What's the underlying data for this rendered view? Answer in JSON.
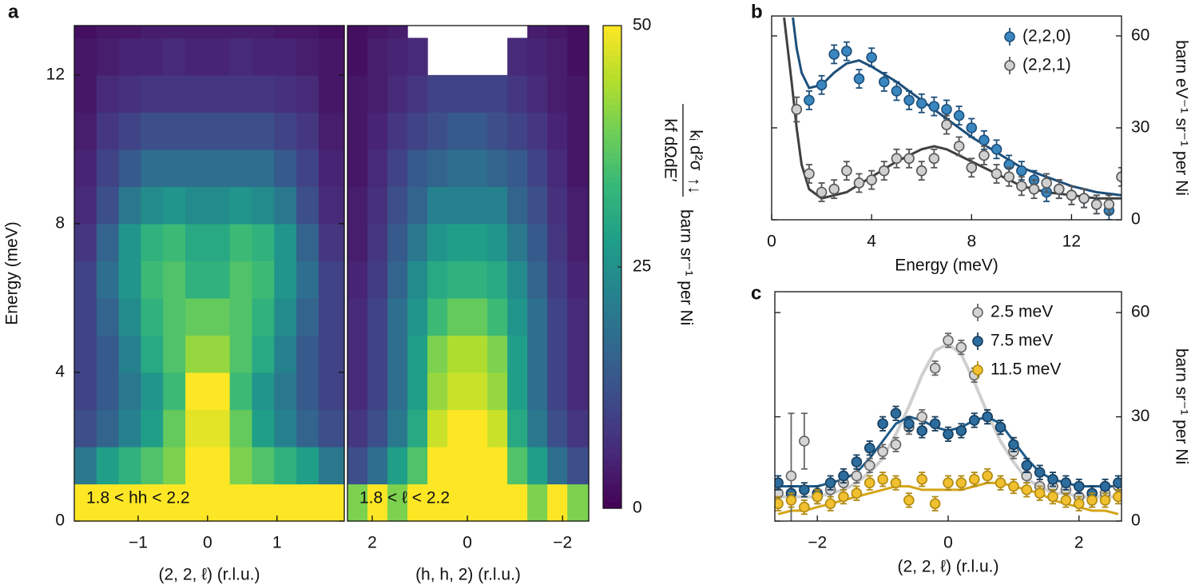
{
  "chart_data": [
    {
      "type": "heatmap",
      "panel": "a",
      "ylabel": "Energy (meV)",
      "xlabel": "(2, 2, ℓ) (r.l.u.)",
      "annotation": "1.8 < hh < 2.2",
      "xlim": [
        -1.92,
        1.97
      ],
      "ylim": [
        0,
        13.33
      ],
      "xticks": [
        {
          "value": -1,
          "label": "−1"
        },
        0,
        1
      ],
      "yticks": [
        0,
        4,
        8,
        12
      ],
      "yaxis_side": "left",
      "x_edges": [
        -1.92,
        -1.6,
        -1.28,
        -0.96,
        -0.64,
        -0.32,
        0,
        0.32,
        0.64,
        0.96,
        1.28,
        1.6,
        1.97
      ],
      "y_edges": [
        0,
        1,
        2,
        3,
        4,
        5,
        6,
        7,
        8,
        9,
        10,
        11,
        12,
        13,
        13.33
      ],
      "z": [
        [
          50,
          50,
          50,
          50,
          50,
          50,
          50,
          50,
          50,
          50,
          50,
          50
        ],
        [
          20,
          28,
          32,
          36,
          40,
          50,
          50,
          40,
          36,
          32,
          28,
          20
        ],
        [
          12,
          16,
          22,
          28,
          38,
          48,
          48,
          38,
          28,
          22,
          16,
          12
        ],
        [
          10,
          14,
          20,
          26,
          34,
          50,
          50,
          34,
          26,
          20,
          14,
          10
        ],
        [
          10,
          14,
          22,
          30,
          36,
          42,
          42,
          36,
          30,
          22,
          14,
          10
        ],
        [
          10,
          16,
          24,
          32,
          36,
          38,
          38,
          36,
          32,
          24,
          16,
          10
        ],
        [
          10,
          18,
          26,
          34,
          36,
          32,
          32,
          36,
          34,
          26,
          18,
          10
        ],
        [
          8,
          16,
          26,
          32,
          34,
          30,
          30,
          34,
          32,
          26,
          16,
          8
        ],
        [
          6,
          12,
          20,
          24,
          26,
          24,
          24,
          26,
          24,
          20,
          12,
          6
        ],
        [
          5,
          10,
          14,
          18,
          18,
          18,
          18,
          18,
          18,
          14,
          10,
          5
        ],
        [
          4,
          8,
          10,
          12,
          12,
          12,
          12,
          12,
          12,
          10,
          8,
          4
        ],
        [
          3,
          6,
          7,
          8,
          8,
          8,
          8,
          8,
          8,
          7,
          6,
          3
        ],
        [
          3,
          4,
          5,
          5,
          6,
          5,
          5,
          6,
          5,
          5,
          4,
          3
        ],
        [
          2,
          3,
          3,
          4,
          4,
          4,
          4,
          4,
          4,
          3,
          3,
          2
        ]
      ],
      "colormap": [
        "#440154",
        "#482878",
        "#3e4a89",
        "#31688e",
        "#26828e",
        "#1f9e89",
        "#35b779",
        "#6ece58",
        "#b5de2b",
        "#fde725"
      ],
      "colorbar": {
        "lim": [
          0,
          50
        ],
        "ticks": [
          0,
          25,
          50
        ],
        "fraction_top": "kᵢ d²σ",
        "fraction_bottom": "kf dΩdE′",
        "spin": "↑↓",
        "units": "barn sr⁻¹ per Ni"
      }
    },
    {
      "type": "heatmap",
      "xlabel": "(h, h, 2) (r.l.u.)",
      "annotation": "1.8 < ℓ < 2.2",
      "xlim": [
        2.52,
        -2.55
      ],
      "ylim": [
        0,
        13.33
      ],
      "xticks": [
        2,
        0,
        {
          "value": -2,
          "label": "−2"
        }
      ],
      "x_edges": [
        2.52,
        2.1,
        1.68,
        1.26,
        0.84,
        0.42,
        0,
        -0.42,
        -0.84,
        -1.26,
        -1.68,
        -2.1,
        -2.55
      ],
      "y_edges": [
        0,
        1,
        2,
        3,
        4,
        5,
        6,
        7,
        8,
        9,
        10,
        11,
        12,
        13,
        13.33
      ],
      "z": [
        [
          40,
          50,
          40,
          50,
          50,
          50,
          50,
          50,
          50,
          40,
          50,
          40
        ],
        [
          12,
          18,
          28,
          36,
          50,
          50,
          50,
          50,
          36,
          28,
          18,
          12
        ],
        [
          8,
          12,
          20,
          30,
          46,
          50,
          50,
          46,
          30,
          20,
          12,
          8
        ],
        [
          6,
          10,
          18,
          28,
          42,
          46,
          46,
          42,
          28,
          18,
          10,
          6
        ],
        [
          6,
          10,
          18,
          28,
          40,
          44,
          44,
          40,
          28,
          18,
          10,
          6
        ],
        [
          6,
          10,
          18,
          26,
          34,
          38,
          38,
          34,
          26,
          18,
          10,
          6
        ],
        [
          5,
          9,
          16,
          24,
          30,
          32,
          32,
          30,
          24,
          16,
          9,
          5
        ],
        [
          4,
          8,
          14,
          20,
          26,
          28,
          28,
          26,
          20,
          14,
          8,
          4
        ],
        [
          4,
          7,
          12,
          16,
          22,
          22,
          22,
          22,
          16,
          12,
          7,
          4
        ],
        [
          3,
          6,
          10,
          14,
          16,
          18,
          18,
          16,
          14,
          10,
          6,
          3
        ],
        [
          3,
          5,
          8,
          10,
          12,
          14,
          14,
          12,
          10,
          8,
          5,
          3
        ],
        [
          3,
          4,
          6,
          8,
          10,
          10,
          10,
          10,
          8,
          6,
          4,
          3
        ],
        [
          2,
          4,
          5,
          6,
          null,
          null,
          null,
          null,
          6,
          5,
          4,
          2
        ],
        [
          2,
          3,
          4,
          null,
          null,
          null,
          null,
          null,
          null,
          4,
          3,
          2
        ]
      ],
      "colormap": [
        "#440154",
        "#482878",
        "#3e4a89",
        "#31688e",
        "#26828e",
        "#1f9e89",
        "#35b779",
        "#6ece58",
        "#b5de2b",
        "#fde725"
      ]
    },
    {
      "type": "errorbar",
      "panel": "b",
      "xlabel": "Energy (meV)",
      "ylabel": "barn eV⁻¹ sr⁻¹ per Ni",
      "xlim": [
        0,
        14
      ],
      "ylim": [
        0,
        66.5
      ],
      "xticks": [
        0,
        4,
        8,
        12
      ],
      "yticks": [
        0,
        30,
        60
      ],
      "yaxis_side": "right",
      "legend": "upper right",
      "series": [
        {
          "kind": "line",
          "color": "#404040",
          "width": 3,
          "x": [
            0.5,
            0.8,
            1,
            1.2,
            1.5,
            2,
            3,
            4,
            5,
            6,
            6.5,
            7,
            8,
            9,
            10,
            11,
            12,
            13,
            14
          ],
          "values": [
            66,
            45,
            30,
            18,
            10,
            7,
            9,
            14,
            19,
            23,
            24,
            23,
            19,
            15,
            11,
            9,
            8,
            7,
            7
          ]
        },
        {
          "kind": "line",
          "color": "#1d4f7a",
          "width": 3,
          "x": [
            0.85,
            1,
            1.2,
            1.5,
            2,
            2.5,
            3,
            3.5,
            4,
            5,
            6,
            7,
            8,
            9,
            10,
            11,
            12,
            13,
            14
          ],
          "values": [
            66,
            56,
            48,
            43,
            44,
            48,
            51,
            52,
            50,
            45,
            39,
            33,
            27,
            22,
            17,
            14,
            11,
            9,
            8
          ]
        },
        {
          "kind": "points",
          "name": "(2,2,0)",
          "color": "#3a87c0",
          "edgecolor": "#1d4f7a",
          "x": [
            1.5,
            2,
            2.5,
            3,
            3.5,
            4,
            4.5,
            5,
            5.5,
            6,
            6.5,
            7,
            7.5,
            8,
            8.5,
            9,
            9.5,
            10,
            10.5,
            11,
            11.5,
            12,
            12.5,
            13,
            13.5
          ],
          "values": [
            39,
            44,
            54,
            55,
            46,
            53,
            45,
            42,
            39,
            38,
            37,
            36,
            34,
            30,
            26,
            23,
            18,
            16,
            13,
            9,
            10,
            8,
            7,
            5,
            3
          ],
          "errors": [
            3,
            3,
            3,
            3,
            3,
            3,
            3,
            3,
            3,
            3,
            3,
            3,
            3,
            3,
            3,
            3,
            3,
            3,
            3,
            3,
            3,
            3,
            3,
            3,
            3
          ]
        },
        {
          "kind": "points",
          "name": "(2,2,1)",
          "color": "#d0d0d0",
          "edgecolor": "#555555",
          "x": [
            1,
            1.5,
            2,
            2.5,
            3,
            3.5,
            4,
            4.5,
            5,
            5.5,
            6,
            6.5,
            7,
            7.5,
            8,
            8.5,
            9,
            9.5,
            10,
            10.5,
            11,
            11.5,
            12,
            12.5,
            13,
            13.5,
            14
          ],
          "values": [
            36,
            15,
            9,
            10,
            16,
            12,
            13,
            16,
            20,
            20,
            16,
            20,
            31,
            24,
            17,
            21,
            15,
            14,
            11,
            10,
            12,
            10,
            8,
            7,
            5,
            5,
            14
          ],
          "errors": [
            4,
            3,
            3,
            3,
            3,
            3,
            3,
            3,
            3,
            3,
            3,
            3,
            3,
            3,
            3,
            3,
            3,
            3,
            3,
            3,
            3,
            3,
            3,
            3,
            3,
            3,
            3
          ]
        }
      ]
    },
    {
      "type": "errorbar",
      "panel": "c",
      "xlabel": "(2, 2, ℓ) (r.l.u.)",
      "ylabel": "barn sr⁻¹ per Ni",
      "xlim": [
        -2.65,
        2.65
      ],
      "ylim": [
        0,
        66
      ],
      "xticks": [
        {
          "value": -2,
          "label": "−2"
        },
        0,
        2
      ],
      "yticks": [
        0,
        30,
        60
      ],
      "yaxis_side": "right",
      "legend": "upper right",
      "x": [
        -2.6,
        -2.4,
        -2.2,
        -2.0,
        -1.8,
        -1.6,
        -1.4,
        -1.2,
        -1.0,
        -0.8,
        -0.6,
        -0.4,
        -0.2,
        0,
        0.2,
        0.4,
        0.6,
        0.8,
        1.0,
        1.2,
        1.4,
        1.6,
        1.8,
        2.0,
        2.2,
        2.4,
        2.6
      ],
      "series": [
        {
          "kind": "line",
          "color": "#cfcfcf",
          "width": 4,
          "values": [
            7,
            7,
            7,
            7,
            8,
            9,
            11,
            14,
            18,
            25,
            33,
            42,
            49,
            51,
            48,
            40,
            31,
            23,
            17,
            12,
            10,
            8,
            8,
            7,
            7,
            7,
            7
          ]
        },
        {
          "kind": "line",
          "color": "#1f5c8a",
          "width": 3,
          "values": [
            10,
            10,
            10,
            10,
            11,
            12,
            14,
            18,
            23,
            28,
            30,
            29,
            27,
            26,
            27,
            29,
            30,
            28,
            23,
            18,
            14,
            12,
            11,
            10,
            10,
            10,
            10
          ]
        },
        {
          "kind": "line",
          "color": "#d4a516",
          "width": 3,
          "values": [
            2,
            3,
            3,
            4,
            5,
            6,
            7,
            8,
            9,
            10,
            10,
            9,
            9,
            9,
            9,
            10,
            11,
            11,
            10,
            9,
            8,
            6,
            5,
            4,
            3,
            3,
            2
          ]
        },
        {
          "kind": "points",
          "name": "2.5 meV",
          "color": "#d4d4d4",
          "edgecolor": "#666666",
          "values": [
            8,
            13,
            23,
            7,
            9,
            11,
            13,
            16,
            20,
            22,
            27,
            30,
            44,
            52,
            50,
            42,
            30,
            27,
            20,
            13,
            10,
            10,
            9,
            7,
            6,
            8,
            10
          ],
          "errors": [
            2,
            18,
            8,
            2,
            2,
            2,
            2,
            2,
            2,
            2,
            2,
            2,
            2,
            2,
            2,
            2,
            2,
            2,
            2,
            2,
            2,
            2,
            2,
            2,
            2,
            2,
            2
          ]
        },
        {
          "kind": "points",
          "name": "7.5 meV",
          "color": "#2d6d9e",
          "edgecolor": "#163e5e",
          "values": [
            11,
            8,
            9,
            8,
            11,
            13,
            17,
            21,
            28,
            31,
            28,
            26,
            28,
            25,
            26,
            29,
            30,
            27,
            22,
            16,
            14,
            12,
            11,
            10,
            8,
            10,
            11
          ],
          "errors": [
            2,
            2,
            2,
            2,
            2,
            2,
            2,
            2,
            2,
            2,
            2,
            2,
            2,
            2,
            2,
            2,
            2,
            2,
            2,
            2,
            2,
            2,
            2,
            2,
            2,
            2,
            2
          ]
        },
        {
          "kind": "points",
          "name": "11.5 meV",
          "color": "#f0c030",
          "edgecolor": "#b08a10",
          "values": [
            5,
            6,
            4,
            7,
            5,
            7,
            8,
            11,
            12,
            11,
            6,
            12,
            5,
            11,
            11,
            12,
            13,
            11,
            10,
            9,
            8,
            7,
            6,
            5,
            6,
            6,
            7
          ],
          "errors": [
            2,
            2,
            2,
            2,
            2,
            2,
            2,
            2,
            2,
            2,
            2,
            2,
            2,
            2,
            2,
            2,
            2,
            2,
            2,
            2,
            2,
            2,
            2,
            2,
            2,
            2,
            2
          ]
        }
      ]
    }
  ]
}
